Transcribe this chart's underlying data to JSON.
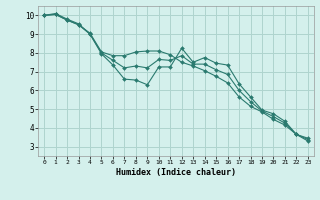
{
  "xlabel": "Humidex (Indice chaleur)",
  "background_color": "#d4f0ec",
  "grid_color": "#aed4ce",
  "line_color": "#2a7a6f",
  "xlim": [
    -0.5,
    23.5
  ],
  "ylim": [
    2.5,
    10.5
  ],
  "xticks": [
    0,
    1,
    2,
    3,
    4,
    5,
    6,
    7,
    8,
    9,
    10,
    11,
    12,
    13,
    14,
    15,
    16,
    17,
    18,
    19,
    20,
    21,
    22,
    23
  ],
  "yticks": [
    3,
    4,
    5,
    6,
    7,
    8,
    9,
    10
  ],
  "line1_x": [
    0,
    1,
    2,
    3,
    4,
    5,
    6,
    7,
    8,
    9,
    10,
    11,
    12,
    13,
    14,
    15,
    16,
    17,
    18,
    19,
    20,
    21,
    22,
    23
  ],
  "line1_y": [
    10.0,
    10.1,
    9.8,
    9.55,
    9.0,
    7.95,
    7.35,
    6.6,
    6.55,
    6.3,
    7.25,
    7.25,
    8.25,
    7.5,
    7.75,
    7.45,
    7.35,
    6.35,
    5.65,
    4.95,
    4.75,
    4.35,
    3.65,
    3.45
  ],
  "line2_x": [
    0,
    1,
    2,
    3,
    4,
    5,
    6,
    7,
    8,
    9,
    10,
    11,
    12,
    13,
    14,
    15,
    16,
    17,
    18,
    19,
    20,
    21,
    22,
    23
  ],
  "line2_y": [
    10.0,
    10.05,
    9.75,
    9.5,
    9.05,
    8.05,
    7.85,
    7.85,
    8.05,
    8.1,
    8.1,
    7.9,
    7.5,
    7.3,
    7.05,
    6.75,
    6.4,
    5.65,
    5.15,
    4.85,
    4.45,
    4.15,
    3.65,
    3.3
  ],
  "line3_x": [
    0,
    1,
    2,
    3,
    4,
    5,
    6,
    7,
    8,
    9,
    10,
    11,
    12,
    13,
    14,
    15,
    16,
    17,
    18,
    19,
    20,
    21,
    22,
    23
  ],
  "line3_y": [
    10.0,
    10.05,
    9.75,
    9.5,
    9.0,
    8.0,
    7.6,
    7.2,
    7.3,
    7.2,
    7.65,
    7.6,
    7.85,
    7.4,
    7.4,
    7.1,
    6.85,
    6.0,
    5.4,
    4.9,
    4.6,
    4.25,
    3.65,
    3.38
  ]
}
